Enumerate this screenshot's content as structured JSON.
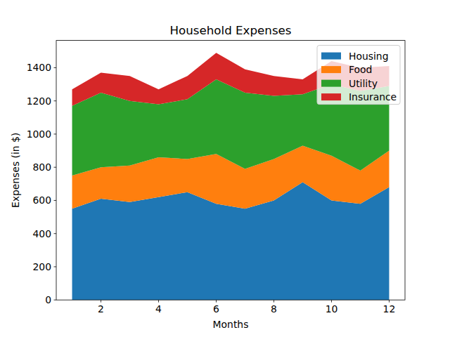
{
  "chart_data": {
    "type": "area",
    "stacked": true,
    "title": "Household Expenses",
    "x_label": "Months",
    "y_label": "Expenses (in $)",
    "x": [
      1,
      2,
      3,
      4,
      5,
      6,
      7,
      8,
      9,
      10,
      11,
      12
    ],
    "series": [
      {
        "name": "Housing",
        "color": "#1f77b4",
        "values": [
          550,
          610,
          590,
          620,
          650,
          580,
          550,
          600,
          710,
          600,
          580,
          680
        ]
      },
      {
        "name": "Food",
        "color": "#ff7f0e",
        "values": [
          200,
          190,
          220,
          240,
          200,
          300,
          240,
          250,
          220,
          270,
          200,
          220
        ]
      },
      {
        "name": "Utility",
        "color": "#2ca02c",
        "values": [
          420,
          450,
          390,
          320,
          360,
          450,
          460,
          380,
          310,
          430,
          480,
          390
        ]
      },
      {
        "name": "Insurance",
        "color": "#d62728",
        "values": [
          100,
          120,
          150,
          90,
          140,
          160,
          140,
          120,
          90,
          140,
          140,
          120
        ]
      }
    ],
    "xlim": [
      0.45,
      12.55
    ],
    "xticks": [
      2,
      4,
      6,
      8,
      10,
      12
    ],
    "ylim": [
      0,
      1564.5
    ],
    "yticks": [
      0,
      200,
      400,
      600,
      800,
      1000,
      1200,
      1400
    ],
    "legend": "upper right"
  }
}
